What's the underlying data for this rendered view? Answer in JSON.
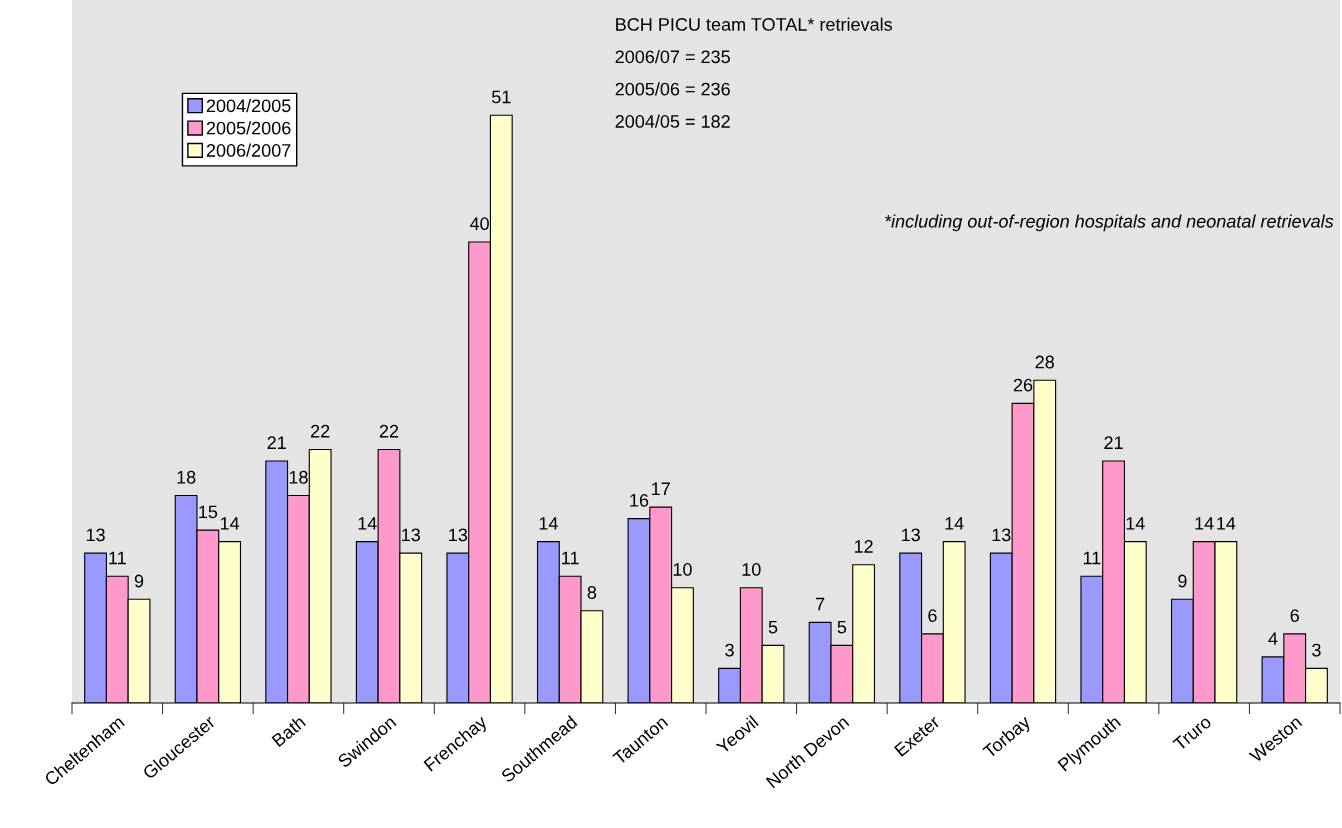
{
  "chart_data": {
    "type": "bar",
    "categories": [
      "Cheltenham",
      "Gloucester",
      "Bath",
      "Swindon",
      "Frenchay",
      "Southmead",
      "Taunton",
      "Yeovil",
      "North Devon",
      "Exeter",
      "Torbay",
      "Plymouth",
      "Truro",
      "Weston"
    ],
    "series": [
      {
        "name": "2004/2005",
        "color": "#9999ff",
        "values": [
          13,
          18,
          21,
          14,
          13,
          14,
          16,
          3,
          7,
          13,
          13,
          11,
          9,
          4
        ]
      },
      {
        "name": "2005/2006",
        "color": "#ff99cc",
        "values": [
          11,
          15,
          18,
          22,
          40,
          11,
          17,
          10,
          5,
          6,
          26,
          21,
          14,
          6
        ]
      },
      {
        "name": "2006/2007",
        "color": "#ffffcc",
        "values": [
          9,
          14,
          22,
          13,
          51,
          8,
          10,
          5,
          12,
          14,
          28,
          14,
          14,
          3
        ]
      }
    ],
    "data_labels": true,
    "ylim": [
      0,
      61
    ],
    "tick_labels": "x",
    "grid": false,
    "legend": "top left",
    "annotations": [
      "BCH PICU team TOTAL* retrievals",
      "2006/07 = 235",
      "2005/06 = 236",
      "2004/05 = 182",
      "*including out-of-region hospitals and neonatal retrievals"
    ]
  }
}
